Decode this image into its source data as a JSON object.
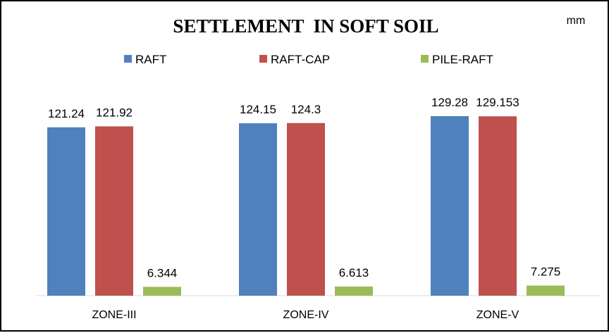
{
  "chart_data": {
    "type": "bar",
    "title": "SETTLEMENT  IN SOFT SOIL",
    "unit": "mm",
    "categories": [
      "ZONE-III",
      "ZONE-IV",
      "ZONE-V"
    ],
    "series": [
      {
        "name": "RAFT",
        "values": [
          121.24,
          124.15,
          129.28
        ],
        "labels": [
          "121.24",
          "124.15",
          "129.28"
        ],
        "color": "#4F81BD"
      },
      {
        "name": "RAFT-CAP",
        "values": [
          121.92,
          124.3,
          129.153
        ],
        "labels": [
          "121.92",
          "124.3",
          "129.153"
        ],
        "color": "#C0504D"
      },
      {
        "name": "PILE-RAFT",
        "values": [
          6.344,
          6.613,
          7.275
        ],
        "labels": [
          "6.344",
          "6.613",
          "7.275"
        ],
        "color": "#9BBB59"
      }
    ],
    "ylim": [
      0,
      147
    ],
    "grid": false,
    "legend_position": "top"
  }
}
